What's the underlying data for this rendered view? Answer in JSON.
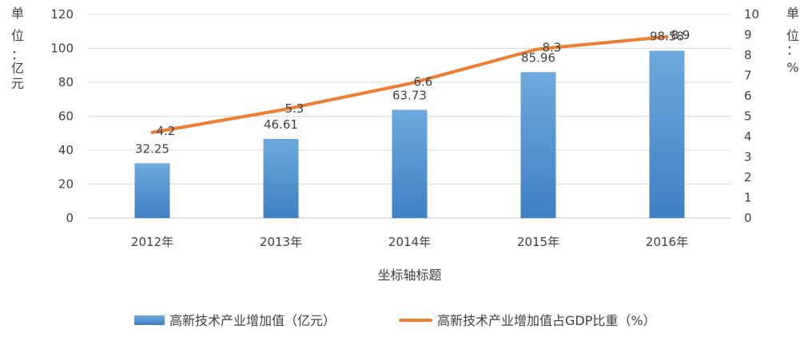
{
  "chart_data": {
    "type": "bar",
    "categories": [
      "2012年",
      "2013年",
      "2014年",
      "2015年",
      "2016年"
    ],
    "series": [
      {
        "name": "高新技术产业增加值（亿元）",
        "type": "bar",
        "axis": "left",
        "values": [
          32.25,
          46.61,
          63.73,
          85.96,
          98.58
        ],
        "data_labels": [
          "32.25",
          "46.61",
          "63.73",
          "85.96",
          "98.58"
        ],
        "color": "#5B9BD5"
      },
      {
        "name": "高新技术产业增加值占GDP比重（%）",
        "type": "line",
        "axis": "right",
        "values": [
          4.2,
          5.3,
          6.6,
          8.3,
          8.9
        ],
        "data_labels": [
          "4.2",
          "5.3",
          "6.6",
          "8.3",
          "8.9"
        ],
        "color": "#ED7D31"
      }
    ],
    "xlabel": "坐标轴标题",
    "ylabel_left": "单位：亿元",
    "ylabel_right": "单位：%",
    "ylim_left": [
      0,
      120
    ],
    "ylim_right": [
      0,
      10
    ],
    "yticks_left": [
      "0",
      "20",
      "40",
      "60",
      "80",
      "100",
      "120"
    ],
    "yticks_right": [
      "0",
      "1",
      "2",
      "3",
      "4",
      "5",
      "6",
      "7",
      "8",
      "9",
      "10"
    ],
    "grid": true,
    "legend_position": "bottom"
  }
}
